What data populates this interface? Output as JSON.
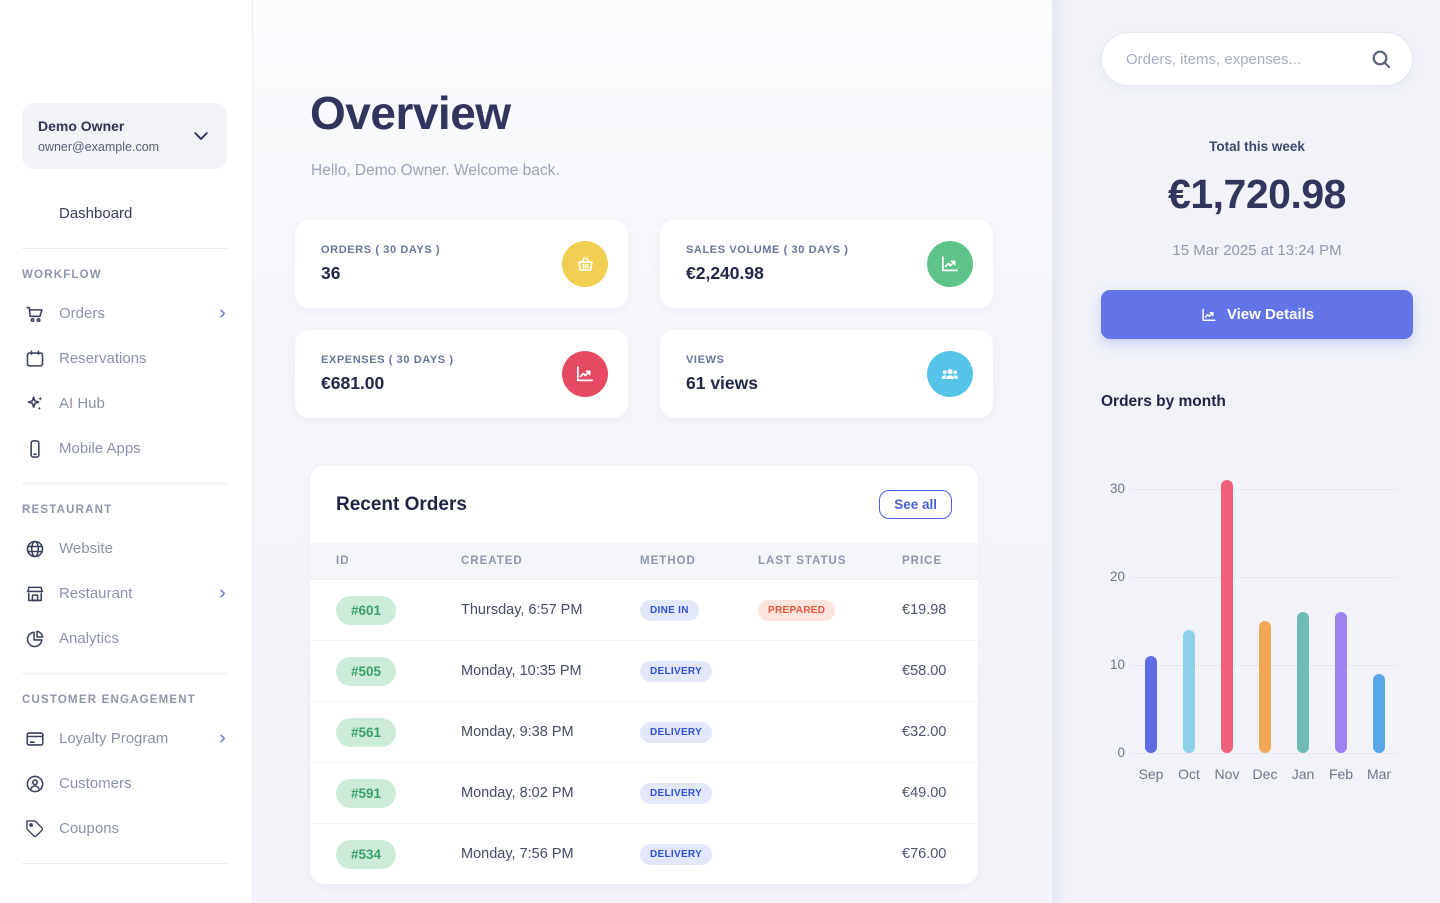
{
  "sidebar": {
    "user": {
      "name": "Demo Owner",
      "email": "owner@example.com"
    },
    "dashboard": {
      "label": "Dashboard",
      "icon": "monitor-icon"
    },
    "sections": [
      {
        "label": "WORKFLOW",
        "items": [
          {
            "label": "Orders",
            "icon": "cart-icon",
            "has_chevron": true
          },
          {
            "label": "Reservations",
            "icon": "calendar-icon",
            "has_chevron": false
          },
          {
            "label": "AI Hub",
            "icon": "sparkles-icon",
            "has_chevron": false
          },
          {
            "label": "Mobile Apps",
            "icon": "phone-icon",
            "has_chevron": false
          }
        ]
      },
      {
        "label": "RESTAURANT",
        "items": [
          {
            "label": "Website",
            "icon": "globe-icon",
            "has_chevron": false
          },
          {
            "label": "Restaurant",
            "icon": "storefront-icon",
            "has_chevron": true
          },
          {
            "label": "Analytics",
            "icon": "pie-chart-icon",
            "has_chevron": false
          }
        ]
      },
      {
        "label": "CUSTOMER ENGAGEMENT",
        "items": [
          {
            "label": "Loyalty Program",
            "icon": "credit-card-icon",
            "has_chevron": true
          },
          {
            "label": "Customers",
            "icon": "user-circle-icon",
            "has_chevron": false
          },
          {
            "label": "Coupons",
            "icon": "tag-icon",
            "has_chevron": false
          }
        ]
      }
    ]
  },
  "main": {
    "title": "Overview",
    "greeting": "Hello, Demo Owner. Welcome back.",
    "stats": [
      {
        "label": "ORDERS ( 30 DAYS )",
        "value": "36",
        "icon": "basket-icon",
        "color": "#f0cf52"
      },
      {
        "label": "SALES VOLUME ( 30 DAYS )",
        "value": "€2,240.98",
        "icon": "trend-up-icon",
        "color": "#5dc389"
      },
      {
        "label": "EXPENSES ( 30 DAYS )",
        "value": "€681.00",
        "icon": "trend-down-icon",
        "color": "#e64a63"
      },
      {
        "label": "VIEWS",
        "value": "61 views",
        "icon": "people-icon",
        "color": "#56c4e8"
      }
    ],
    "recent_orders": {
      "title": "Recent Orders",
      "see_all_label": "See all",
      "columns": [
        "ID",
        "CREATED",
        "METHOD",
        "LAST STATUS",
        "PRICE"
      ],
      "rows": [
        {
          "id": "#601",
          "created": "Thursday, 6:57 PM",
          "method": "DINE IN",
          "status": "PREPARED",
          "price": "€19.98"
        },
        {
          "id": "#505",
          "created": "Monday, 10:35 PM",
          "method": "DELIVERY",
          "status": "",
          "price": "€58.00"
        },
        {
          "id": "#561",
          "created": "Monday, 9:38 PM",
          "method": "DELIVERY",
          "status": "",
          "price": "€32.00"
        },
        {
          "id": "#591",
          "created": "Monday, 8:02 PM",
          "method": "DELIVERY",
          "status": "",
          "price": "€49.00"
        },
        {
          "id": "#534",
          "created": "Monday, 7:56 PM",
          "method": "DELIVERY",
          "status": "",
          "price": "€76.00"
        }
      ]
    }
  },
  "aside": {
    "search_placeholder": "Orders, items, expenses...",
    "total_label": "Total this week",
    "total_value": "€1,720.98",
    "total_date": "15 Mar 2025 at 13:24 PM",
    "view_details_label": "View Details",
    "chart_title": "Orders by month"
  },
  "chart_data": {
    "type": "bar",
    "title": "Orders by month",
    "categories": [
      "Sep",
      "Oct",
      "Nov",
      "Dec",
      "Jan",
      "Feb",
      "Mar"
    ],
    "values": [
      11,
      14,
      31,
      15,
      16,
      16,
      9
    ],
    "bar_colors": [
      "#5f6ce1",
      "#8cd0ea",
      "#f0607d",
      "#f2a758",
      "#6fbcb6",
      "#9c83f0",
      "#59a7e8"
    ],
    "yticks": [
      0,
      10,
      20,
      30
    ],
    "ylim": [
      0,
      33
    ],
    "grid": "dotted-horizontal",
    "legend": "none",
    "xlabel": "",
    "ylabel": ""
  },
  "colors": {
    "accent": "#6373e8",
    "link": "#4a5fd6",
    "id_badge_bg": "#ccecd9",
    "id_badge_text": "#39a069",
    "method_badge_bg": "#e3e7fa",
    "method_badge_text": "#3050d8",
    "status_badge_bg": "#fbe4dc",
    "status_badge_text": "#e5553f"
  }
}
